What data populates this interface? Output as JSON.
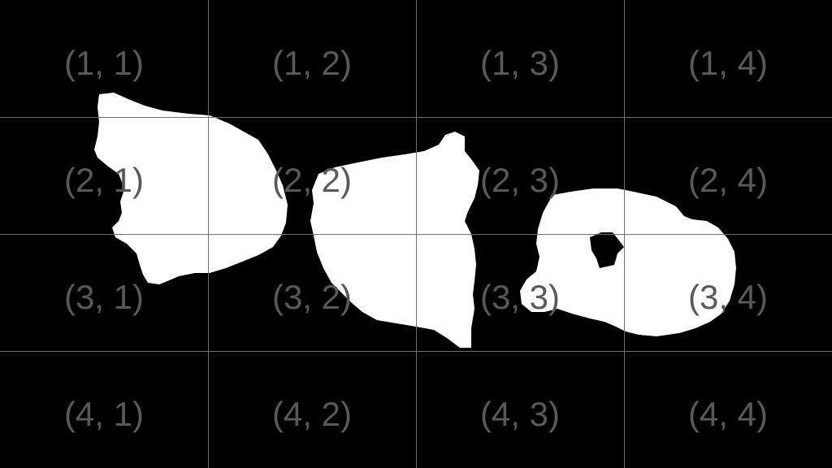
{
  "colors": {
    "background": "#000000",
    "blob": "#ffffff",
    "grid": "#6e6e6e",
    "label": "#595959"
  },
  "grid": {
    "rows": 4,
    "cols": 4,
    "labels": [
      [
        "(1, 1)",
        "(1, 2)",
        "(1, 3)",
        "(1, 4)"
      ],
      [
        "(2, 1)",
        "(2, 2)",
        "(2, 3)",
        "(2, 4)"
      ],
      [
        "(3, 1)",
        "(3, 2)",
        "(3, 3)",
        "(3, 4)"
      ],
      [
        "(4, 1)",
        "(4, 2)",
        "(4, 3)",
        "(4, 4)"
      ]
    ]
  }
}
